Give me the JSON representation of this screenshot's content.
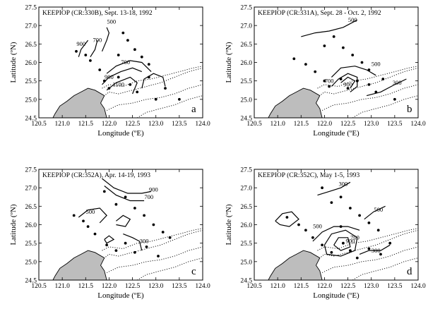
{
  "axes": {
    "xlabel": "Longitude (ºE)",
    "ylabel": "Latitude (ºN)",
    "xticks": [
      "120.5",
      "121.0",
      "121.5",
      "122.0",
      "122.5",
      "123.0",
      "123.5",
      "124.0"
    ],
    "yticks": [
      "24.5",
      "25.0",
      "25.5",
      "26.0",
      "26.5",
      "27.0",
      "27.5"
    ],
    "xlim": [
      120.5,
      124.0
    ],
    "ylim": [
      24.5,
      27.5
    ]
  },
  "colors": {
    "land": "#bdbdbd",
    "line": "#000000"
  },
  "land": [
    [
      121.95,
      24.5
    ],
    [
      121.9,
      24.75
    ],
    [
      121.82,
      24.9
    ],
    [
      121.9,
      25.1
    ],
    [
      121.7,
      25.25
    ],
    [
      121.55,
      25.3
    ],
    [
      121.4,
      25.2
    ],
    [
      121.25,
      25.1
    ],
    [
      121.1,
      24.95
    ],
    [
      120.95,
      24.82
    ],
    [
      120.85,
      24.62
    ],
    [
      120.8,
      24.5
    ]
  ],
  "isobaths": [
    [
      [
        121.85,
        25.05
      ],
      [
        122.0,
        25.2
      ],
      [
        122.2,
        25.15
      ],
      [
        122.5,
        25.25
      ],
      [
        122.8,
        25.35
      ],
      [
        123.1,
        25.45
      ],
      [
        123.4,
        25.6
      ],
      [
        123.7,
        25.75
      ],
      [
        124.0,
        25.85
      ]
    ],
    [
      [
        121.85,
        25.3
      ],
      [
        122.0,
        25.4
      ],
      [
        122.3,
        25.35
      ],
      [
        122.6,
        25.5
      ],
      [
        122.9,
        25.55
      ],
      [
        123.2,
        25.65
      ],
      [
        123.5,
        25.75
      ],
      [
        123.8,
        25.85
      ],
      [
        124.0,
        25.9
      ]
    ],
    [
      [
        121.95,
        24.7
      ],
      [
        122.2,
        24.85
      ],
      [
        122.5,
        24.9
      ],
      [
        122.8,
        25.0
      ],
      [
        123.1,
        25.05
      ],
      [
        123.4,
        25.15
      ],
      [
        123.7,
        25.3
      ],
      [
        124.0,
        25.4
      ]
    ],
    [
      [
        122.6,
        24.5
      ],
      [
        122.8,
        24.65
      ],
      [
        123.1,
        24.75
      ],
      [
        123.4,
        24.85
      ],
      [
        123.7,
        25.0
      ],
      [
        124.0,
        25.1
      ]
    ]
  ],
  "panels": [
    {
      "title": "KEEPIOP (CR:330B), Sept. 13-18, 1992",
      "letter": "a",
      "stations": [
        [
          121.3,
          26.3
        ],
        [
          121.5,
          26.2
        ],
        [
          121.6,
          26.05
        ],
        [
          121.8,
          25.8
        ],
        [
          121.9,
          25.5
        ],
        [
          122.0,
          25.3
        ],
        [
          122.2,
          25.6
        ],
        [
          122.45,
          25.4
        ],
        [
          122.6,
          25.2
        ],
        [
          122.85,
          25.6
        ],
        [
          123.0,
          25.0
        ],
        [
          123.2,
          25.3
        ],
        [
          123.5,
          25.0
        ],
        [
          122.4,
          26.6
        ],
        [
          122.55,
          26.35
        ],
        [
          122.7,
          26.15
        ],
        [
          122.85,
          25.95
        ],
        [
          122.3,
          26.8
        ],
        [
          122.2,
          26.2
        ]
      ],
      "contours": [
        {
          "label": "500",
          "lx": 122.05,
          "ly": 27.05,
          "pts": [
            [
              121.95,
              26.95
            ],
            [
              122.0,
              26.8
            ],
            [
              121.95,
              26.6
            ],
            [
              121.85,
              26.3
            ]
          ]
        },
        {
          "label": "700",
          "lx": 121.75,
          "ly": 26.55,
          "pts": [
            [
              121.75,
              26.6
            ],
            [
              121.7,
              26.35
            ],
            [
              121.6,
              26.15
            ]
          ]
        },
        {
          "label": "900",
          "lx": 121.4,
          "ly": 26.45,
          "pts": [
            [
              121.55,
              26.6
            ],
            [
              121.4,
              26.35
            ],
            [
              121.35,
              26.15
            ]
          ]
        },
        {
          "label": "900",
          "lx": 122.0,
          "ly": 25.55,
          "pts": [
            [
              121.85,
              25.4
            ],
            [
              122.0,
              25.6
            ],
            [
              122.25,
              25.75
            ],
            [
              122.5,
              25.85
            ],
            [
              122.7,
              25.75
            ]
          ]
        },
        {
          "label": "700",
          "lx": 122.35,
          "ly": 25.95,
          "pts": [
            [
              121.95,
              25.7
            ],
            [
              122.15,
              25.9
            ],
            [
              122.45,
              26.05
            ],
            [
              122.7,
              26.0
            ],
            [
              122.9,
              25.75
            ]
          ]
        },
        {
          "label": "1100",
          "lx": 122.2,
          "ly": 25.35,
          "pts": [
            [
              121.95,
              25.25
            ],
            [
              122.15,
              25.45
            ],
            [
              122.45,
              25.6
            ],
            [
              122.6,
              25.45
            ],
            [
              122.5,
              25.15
            ]
          ]
        },
        {
          "label": "",
          "lx": 0,
          "ly": 0,
          "pts": [
            [
              122.7,
              25.3
            ],
            [
              122.75,
              25.55
            ],
            [
              122.95,
              25.7
            ],
            [
              123.15,
              25.6
            ],
            [
              123.2,
              25.35
            ]
          ]
        }
      ]
    },
    {
      "title": "KEEPIOP (CR:331A), Sept. 28 - Oct. 2, 1992",
      "letter": "b",
      "stations": [
        [
          121.35,
          26.1
        ],
        [
          121.6,
          25.95
        ],
        [
          121.8,
          25.75
        ],
        [
          122.0,
          25.5
        ],
        [
          122.1,
          25.35
        ],
        [
          122.35,
          25.55
        ],
        [
          122.5,
          25.3
        ],
        [
          122.7,
          25.5
        ],
        [
          122.95,
          25.4
        ],
        [
          123.1,
          25.2
        ],
        [
          123.5,
          25.0
        ],
        [
          122.4,
          26.4
        ],
        [
          122.6,
          26.2
        ],
        [
          122.8,
          26.0
        ],
        [
          122.2,
          26.7
        ],
        [
          122.0,
          26.45
        ],
        [
          122.95,
          25.8
        ],
        [
          123.25,
          25.55
        ]
      ],
      "contours": [
        {
          "label": "500",
          "lx": 122.6,
          "ly": 27.1,
          "pts": [
            [
              121.5,
              26.7
            ],
            [
              121.8,
              26.8
            ],
            [
              122.1,
              26.85
            ],
            [
              122.4,
              26.95
            ],
            [
              122.7,
              27.15
            ]
          ]
        },
        {
          "label": "500",
          "lx": 123.1,
          "ly": 25.9,
          "pts": [
            [
              122.15,
              25.6
            ],
            [
              122.35,
              25.85
            ],
            [
              122.65,
              25.9
            ],
            [
              122.9,
              25.8
            ],
            [
              123.1,
              25.65
            ]
          ]
        },
        {
          "label": "700",
          "lx": 122.1,
          "ly": 25.45,
          "pts": [
            [
              122.15,
              25.35
            ],
            [
              122.3,
              25.55
            ],
            [
              122.5,
              25.7
            ],
            [
              122.7,
              25.6
            ],
            [
              122.7,
              25.35
            ],
            [
              122.55,
              25.2
            ]
          ]
        },
        {
          "label": "900",
          "lx": 122.5,
          "ly": 25.35,
          "pts": [
            [
              122.35,
              25.45
            ],
            [
              122.5,
              25.6
            ],
            [
              122.65,
              25.5
            ],
            [
              122.55,
              25.3
            ]
          ]
        },
        {
          "label": "300",
          "lx": 123.55,
          "ly": 25.4,
          "pts": [
            [
              122.9,
              25.1
            ],
            [
              123.2,
              25.2
            ],
            [
              123.5,
              25.4
            ],
            [
              123.75,
              25.55
            ]
          ]
        }
      ]
    },
    {
      "title": "KEEPIOP (CR:352A), Apr. 14-19, 1993",
      "letter": "c",
      "stations": [
        [
          121.25,
          26.25
        ],
        [
          121.45,
          26.1
        ],
        [
          121.55,
          25.95
        ],
        [
          121.7,
          25.75
        ],
        [
          121.95,
          25.45
        ],
        [
          122.15,
          25.3
        ],
        [
          122.35,
          25.5
        ],
        [
          122.55,
          25.25
        ],
        [
          122.8,
          25.4
        ],
        [
          123.05,
          25.15
        ],
        [
          123.3,
          25.65
        ],
        [
          122.35,
          26.75
        ],
        [
          122.55,
          26.45
        ],
        [
          122.75,
          26.25
        ],
        [
          122.95,
          26.0
        ],
        [
          123.15,
          25.8
        ],
        [
          121.9,
          26.9
        ],
        [
          122.15,
          26.55
        ]
      ],
      "contours": [
        {
          "label": "900",
          "lx": 122.95,
          "ly": 26.9,
          "pts": [
            [
              121.85,
              27.25
            ],
            [
              122.1,
              27.0
            ],
            [
              122.4,
              26.85
            ],
            [
              122.7,
              26.85
            ],
            [
              122.9,
              26.9
            ]
          ]
        },
        {
          "label": "700",
          "lx": 122.85,
          "ly": 26.7,
          "pts": [
            [
              121.9,
              27.05
            ],
            [
              122.15,
              26.8
            ],
            [
              122.45,
              26.65
            ],
            [
              122.75,
              26.65
            ]
          ]
        },
        {
          "label": "500",
          "lx": 121.6,
          "ly": 26.3,
          "pts": [
            [
              121.35,
              26.2
            ],
            [
              121.55,
              26.4
            ],
            [
              121.8,
              26.45
            ],
            [
              121.95,
              26.25
            ],
            [
              121.8,
              26.05
            ]
          ]
        },
        {
          "label": "",
          "lx": 0,
          "ly": 0,
          "pts": [
            [
              122.15,
              26.1
            ],
            [
              122.3,
              26.25
            ],
            [
              122.45,
              26.15
            ],
            [
              122.35,
              25.95
            ],
            [
              122.15,
              26.0
            ]
          ]
        },
        {
          "label": "",
          "lx": 0,
          "ly": 0,
          "pts": [
            [
              121.9,
              25.6
            ],
            [
              122.0,
              25.7
            ],
            [
              122.1,
              25.6
            ],
            [
              121.95,
              25.5
            ],
            [
              121.9,
              25.6
            ]
          ]
        },
        {
          "label": "300",
          "lx": 122.75,
          "ly": 25.5,
          "pts": [
            [
              122.3,
              25.75
            ],
            [
              122.5,
              25.65
            ],
            [
              122.65,
              25.55
            ],
            [
              122.7,
              25.3
            ]
          ]
        }
      ]
    },
    {
      "title": "KEEPIOP (CR:352C), May 1-5, 1993",
      "letter": "d",
      "stations": [
        [
          121.2,
          26.2
        ],
        [
          121.45,
          26.0
        ],
        [
          121.6,
          25.85
        ],
        [
          121.75,
          25.65
        ],
        [
          121.95,
          25.45
        ],
        [
          122.15,
          25.25
        ],
        [
          122.4,
          25.5
        ],
        [
          122.55,
          25.3
        ],
        [
          122.7,
          25.1
        ],
        [
          122.95,
          25.35
        ],
        [
          123.2,
          25.2
        ],
        [
          123.4,
          25.5
        ],
        [
          122.35,
          26.75
        ],
        [
          122.55,
          26.45
        ],
        [
          122.75,
          26.25
        ],
        [
          122.95,
          26.05
        ],
        [
          123.15,
          25.85
        ],
        [
          121.95,
          27.0
        ],
        [
          122.15,
          26.6
        ],
        [
          122.35,
          25.95
        ]
      ],
      "contours": [
        {
          "label": "300",
          "lx": 122.4,
          "ly": 27.05,
          "pts": [
            [
              121.85,
              26.8
            ],
            [
              122.1,
              26.9
            ],
            [
              122.35,
              27.0
            ],
            [
              122.55,
              27.15
            ]
          ]
        },
        {
          "label": "500",
          "lx": 123.15,
          "ly": 26.35,
          "pts": [
            [
              122.85,
              26.15
            ],
            [
              123.05,
              26.35
            ],
            [
              123.3,
              26.5
            ]
          ]
        },
        {
          "label": "",
          "lx": 0,
          "ly": 0,
          "pts": [
            [
              120.95,
              26.1
            ],
            [
              121.1,
              26.3
            ],
            [
              121.3,
              26.35
            ],
            [
              121.45,
              26.15
            ],
            [
              121.25,
              25.95
            ],
            [
              121.05,
              26.0
            ],
            [
              120.95,
              26.1
            ]
          ]
        },
        {
          "label": "500",
          "lx": 121.85,
          "ly": 25.9,
          "pts": [
            [
              121.75,
              25.55
            ],
            [
              121.95,
              25.8
            ],
            [
              122.2,
              25.95
            ],
            [
              122.5,
              25.95
            ],
            [
              122.75,
              25.85
            ]
          ]
        },
        {
          "label": "700",
          "lx": 122.65,
          "ly": 25.6,
          "pts": [
            [
              122.0,
              25.45
            ],
            [
              122.15,
              25.75
            ],
            [
              122.45,
              25.85
            ],
            [
              122.7,
              25.65
            ],
            [
              122.65,
              25.3
            ],
            [
              122.35,
              25.15
            ],
            [
              122.05,
              25.2
            ],
            [
              122.0,
              25.45
            ]
          ]
        },
        {
          "label": "900",
          "lx": 122.55,
          "ly": 25.5,
          "pts": [
            [
              122.2,
              25.45
            ],
            [
              122.3,
              25.65
            ],
            [
              122.5,
              25.65
            ],
            [
              122.55,
              25.4
            ],
            [
              122.35,
              25.3
            ],
            [
              122.2,
              25.45
            ]
          ]
        },
        {
          "label": "300",
          "lx": 123.1,
          "ly": 25.25,
          "pts": [
            [
              122.75,
              25.2
            ],
            [
              122.95,
              25.3
            ],
            [
              123.2,
              25.3
            ],
            [
              123.4,
              25.45
            ]
          ]
        }
      ]
    }
  ]
}
